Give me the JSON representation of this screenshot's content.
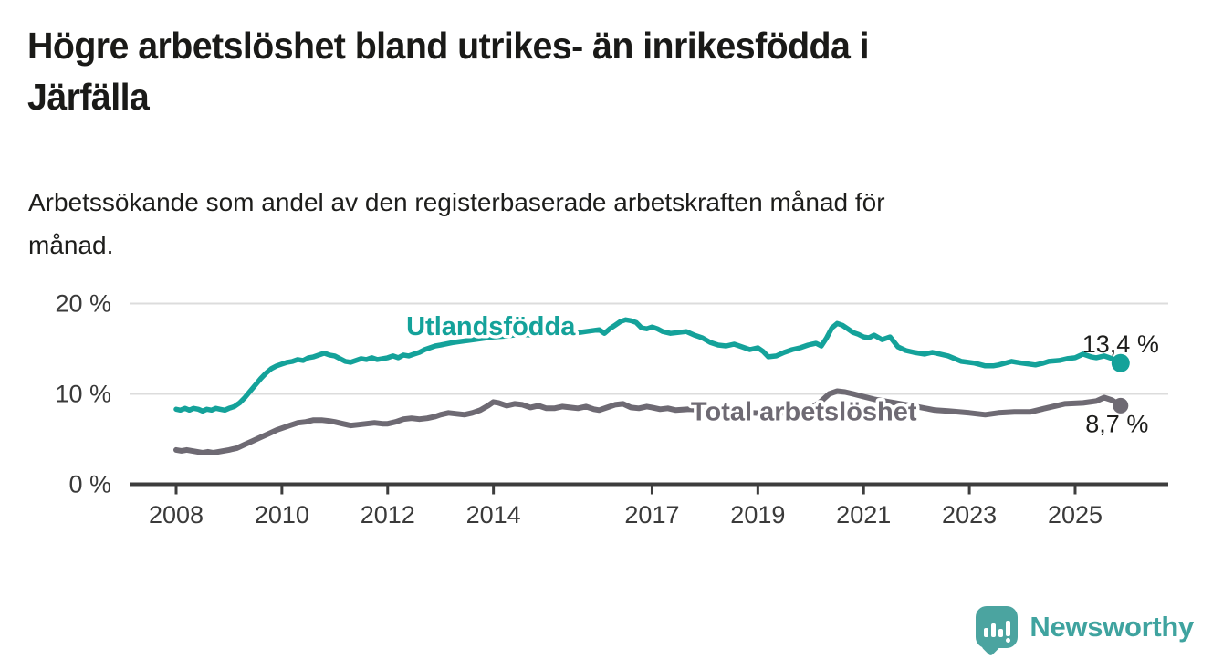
{
  "header": {
    "title": "Högre arbetslöshet bland utrikes- än inrikesfödda i Järfälla",
    "title_lines": [
      "Högre arbetslöshet bland utrikes- än inrikesfödda i",
      "Järfälla"
    ],
    "subtitle": "Arbetssökande som andel av den registerbaserade arbetskraften månad för månad.",
    "subtitle_lines": [
      "Arbetssökande som andel av den registerbaserade arbetskraften månad för",
      "månad."
    ]
  },
  "colors": {
    "accent_teal": "#14a29a",
    "series_gray": "#6e6a73",
    "text_dark": "#1a1a18",
    "axis_text": "#3a3a3a",
    "gridline": "#dcdcdc",
    "axis_line": "#3d3d3d",
    "logo_teal": "#4ba4a0"
  },
  "chart_data": {
    "type": "line",
    "x_unit": "decimal years (monthly data)",
    "xlim": [
      2007.1,
      2026.8
    ],
    "ylim": [
      0,
      22
    ],
    "grid": "horizontal gridlines at 10 and 20",
    "legend_position": "inline labels on lines, end value labels at right",
    "x_ticks": [
      2008,
      2010,
      2012,
      2014,
      2017,
      2019,
      2021,
      2023,
      2025
    ],
    "y_ticks": [
      {
        "value": 0,
        "label": "0 %"
      },
      {
        "value": 10,
        "label": "10 %"
      },
      {
        "value": 20,
        "label": "20 %"
      }
    ],
    "series": [
      {
        "id": "utlandsfodda",
        "name": "Utlandsfödda",
        "color": "#14a29a",
        "end_value": 13.4,
        "end_label": "13,4 %",
        "end_label_offset": [
          0,
          -21
        ],
        "inline_label": {
          "text": "Utlandsfödda",
          "x": 2013.95,
          "y": 17.55
        },
        "points": [
          [
            2008.0,
            8.3
          ],
          [
            2008.08,
            8.2
          ],
          [
            2008.17,
            8.4
          ],
          [
            2008.25,
            8.2
          ],
          [
            2008.33,
            8.4
          ],
          [
            2008.42,
            8.3
          ],
          [
            2008.5,
            8.1
          ],
          [
            2008.58,
            8.3
          ],
          [
            2008.67,
            8.2
          ],
          [
            2008.75,
            8.4
          ],
          [
            2008.83,
            8.3
          ],
          [
            2008.92,
            8.2
          ],
          [
            2009.0,
            8.4
          ],
          [
            2009.1,
            8.6
          ],
          [
            2009.2,
            9.0
          ],
          [
            2009.3,
            9.6
          ],
          [
            2009.4,
            10.3
          ],
          [
            2009.5,
            11.0
          ],
          [
            2009.6,
            11.7
          ],
          [
            2009.7,
            12.3
          ],
          [
            2009.8,
            12.8
          ],
          [
            2009.9,
            13.1
          ],
          [
            2010.0,
            13.3
          ],
          [
            2010.1,
            13.5
          ],
          [
            2010.2,
            13.6
          ],
          [
            2010.3,
            13.8
          ],
          [
            2010.4,
            13.7
          ],
          [
            2010.5,
            14.0
          ],
          [
            2010.6,
            14.1
          ],
          [
            2010.7,
            14.3
          ],
          [
            2010.8,
            14.5
          ],
          [
            2010.9,
            14.3
          ],
          [
            2011.0,
            14.2
          ],
          [
            2011.1,
            13.9
          ],
          [
            2011.2,
            13.6
          ],
          [
            2011.3,
            13.5
          ],
          [
            2011.4,
            13.7
          ],
          [
            2011.5,
            13.9
          ],
          [
            2011.6,
            13.8
          ],
          [
            2011.7,
            14.0
          ],
          [
            2011.8,
            13.8
          ],
          [
            2011.9,
            13.9
          ],
          [
            2012.0,
            14.0
          ],
          [
            2012.1,
            14.2
          ],
          [
            2012.2,
            14.0
          ],
          [
            2012.3,
            14.3
          ],
          [
            2012.4,
            14.2
          ],
          [
            2012.5,
            14.4
          ],
          [
            2012.6,
            14.6
          ],
          [
            2012.7,
            14.9
          ],
          [
            2012.8,
            15.1
          ],
          [
            2012.9,
            15.3
          ],
          [
            2013.0,
            15.4
          ],
          [
            2013.25,
            15.7
          ],
          [
            2013.5,
            15.9
          ],
          [
            2013.75,
            16.1
          ],
          [
            2014.0,
            16.3
          ],
          [
            2014.25,
            16.4
          ],
          [
            2014.5,
            16.6
          ],
          [
            2014.75,
            16.5
          ],
          [
            2015.0,
            16.7
          ],
          [
            2015.25,
            16.8
          ],
          [
            2015.5,
            16.7
          ],
          [
            2015.75,
            16.9
          ],
          [
            2016.0,
            17.1
          ],
          [
            2016.1,
            16.7
          ],
          [
            2016.2,
            17.2
          ],
          [
            2016.3,
            17.6
          ],
          [
            2016.4,
            18.0
          ],
          [
            2016.5,
            18.2
          ],
          [
            2016.6,
            18.1
          ],
          [
            2016.7,
            17.9
          ],
          [
            2016.8,
            17.3
          ],
          [
            2016.9,
            17.2
          ],
          [
            2017.0,
            17.4
          ],
          [
            2017.1,
            17.2
          ],
          [
            2017.2,
            16.9
          ],
          [
            2017.35,
            16.7
          ],
          [
            2017.5,
            16.8
          ],
          [
            2017.65,
            16.9
          ],
          [
            2017.8,
            16.5
          ],
          [
            2017.95,
            16.2
          ],
          [
            2018.1,
            15.7
          ],
          [
            2018.25,
            15.4
          ],
          [
            2018.4,
            15.3
          ],
          [
            2018.55,
            15.5
          ],
          [
            2018.7,
            15.2
          ],
          [
            2018.85,
            14.9
          ],
          [
            2019.0,
            15.1
          ],
          [
            2019.1,
            14.7
          ],
          [
            2019.2,
            14.1
          ],
          [
            2019.35,
            14.2
          ],
          [
            2019.5,
            14.6
          ],
          [
            2019.65,
            14.9
          ],
          [
            2019.8,
            15.1
          ],
          [
            2019.95,
            15.4
          ],
          [
            2020.1,
            15.6
          ],
          [
            2020.2,
            15.3
          ],
          [
            2020.3,
            16.2
          ],
          [
            2020.4,
            17.3
          ],
          [
            2020.5,
            17.8
          ],
          [
            2020.6,
            17.6
          ],
          [
            2020.7,
            17.2
          ],
          [
            2020.8,
            16.8
          ],
          [
            2020.9,
            16.6
          ],
          [
            2021.0,
            16.3
          ],
          [
            2021.1,
            16.2
          ],
          [
            2021.2,
            16.5
          ],
          [
            2021.35,
            16.0
          ],
          [
            2021.5,
            16.3
          ],
          [
            2021.65,
            15.2
          ],
          [
            2021.8,
            14.8
          ],
          [
            2021.95,
            14.6
          ],
          [
            2022.15,
            14.4
          ],
          [
            2022.3,
            14.6
          ],
          [
            2022.45,
            14.4
          ],
          [
            2022.6,
            14.2
          ],
          [
            2022.85,
            13.6
          ],
          [
            2023.1,
            13.4
          ],
          [
            2023.3,
            13.1
          ],
          [
            2023.45,
            13.1
          ],
          [
            2023.55,
            13.2
          ],
          [
            2023.8,
            13.6
          ],
          [
            2023.9,
            13.5
          ],
          [
            2024.0,
            13.4
          ],
          [
            2024.25,
            13.2
          ],
          [
            2024.4,
            13.4
          ],
          [
            2024.5,
            13.6
          ],
          [
            2024.7,
            13.7
          ],
          [
            2024.85,
            13.9
          ],
          [
            2025.0,
            14.0
          ],
          [
            2025.15,
            14.4
          ],
          [
            2025.3,
            14.1
          ],
          [
            2025.4,
            14.0
          ],
          [
            2025.55,
            14.2
          ],
          [
            2025.7,
            13.9
          ],
          [
            2025.86,
            13.4
          ]
        ]
      },
      {
        "id": "total-arbetsloshet",
        "name": "Total arbetslöshet",
        "color": "#6e6a73",
        "end_value": 8.7,
        "end_label": "8,7 %",
        "end_label_offset": [
          -4,
          20
        ],
        "inline_label": {
          "text": "Total arbetslöshet",
          "x": 2019.87,
          "y": 8.1
        },
        "points": [
          [
            2008.0,
            3.8
          ],
          [
            2008.1,
            3.7
          ],
          [
            2008.2,
            3.8
          ],
          [
            2008.3,
            3.7
          ],
          [
            2008.4,
            3.6
          ],
          [
            2008.5,
            3.5
          ],
          [
            2008.6,
            3.6
          ],
          [
            2008.7,
            3.5
          ],
          [
            2008.8,
            3.6
          ],
          [
            2008.9,
            3.7
          ],
          [
            2009.0,
            3.8
          ],
          [
            2009.15,
            4.0
          ],
          [
            2009.3,
            4.4
          ],
          [
            2009.45,
            4.8
          ],
          [
            2009.6,
            5.2
          ],
          [
            2009.75,
            5.6
          ],
          [
            2009.9,
            6.0
          ],
          [
            2010.0,
            6.2
          ],
          [
            2010.15,
            6.5
          ],
          [
            2010.3,
            6.8
          ],
          [
            2010.45,
            6.9
          ],
          [
            2010.6,
            7.1
          ],
          [
            2010.75,
            7.1
          ],
          [
            2010.9,
            7.0
          ],
          [
            2011.0,
            6.9
          ],
          [
            2011.15,
            6.7
          ],
          [
            2011.3,
            6.5
          ],
          [
            2011.45,
            6.6
          ],
          [
            2011.6,
            6.7
          ],
          [
            2011.75,
            6.8
          ],
          [
            2011.9,
            6.7
          ],
          [
            2012.0,
            6.7
          ],
          [
            2012.15,
            6.9
          ],
          [
            2012.3,
            7.2
          ],
          [
            2012.45,
            7.3
          ],
          [
            2012.6,
            7.2
          ],
          [
            2012.75,
            7.3
          ],
          [
            2012.9,
            7.5
          ],
          [
            2013.0,
            7.7
          ],
          [
            2013.15,
            7.9
          ],
          [
            2013.3,
            7.8
          ],
          [
            2013.45,
            7.7
          ],
          [
            2013.6,
            7.9
          ],
          [
            2013.75,
            8.2
          ],
          [
            2013.9,
            8.7
          ],
          [
            2014.0,
            9.1
          ],
          [
            2014.1,
            9.0
          ],
          [
            2014.25,
            8.7
          ],
          [
            2014.4,
            8.9
          ],
          [
            2014.55,
            8.8
          ],
          [
            2014.7,
            8.5
          ],
          [
            2014.85,
            8.7
          ],
          [
            2015.0,
            8.4
          ],
          [
            2015.15,
            8.4
          ],
          [
            2015.3,
            8.6
          ],
          [
            2015.45,
            8.5
          ],
          [
            2015.6,
            8.4
          ],
          [
            2015.75,
            8.6
          ],
          [
            2015.9,
            8.3
          ],
          [
            2016.0,
            8.2
          ],
          [
            2016.15,
            8.5
          ],
          [
            2016.3,
            8.8
          ],
          [
            2016.45,
            8.9
          ],
          [
            2016.6,
            8.5
          ],
          [
            2016.75,
            8.4
          ],
          [
            2016.9,
            8.6
          ],
          [
            2017.0,
            8.5
          ],
          [
            2017.15,
            8.3
          ],
          [
            2017.3,
            8.4
          ],
          [
            2017.45,
            8.2
          ],
          [
            2017.7,
            8.3
          ],
          [
            2018.0,
            8.2
          ],
          [
            2018.3,
            8.0
          ],
          [
            2018.6,
            8.1
          ],
          [
            2018.9,
            7.9
          ],
          [
            2019.2,
            7.8
          ],
          [
            2019.5,
            7.9
          ],
          [
            2019.8,
            8.1
          ],
          [
            2020.0,
            8.4
          ],
          [
            2020.2,
            9.2
          ],
          [
            2020.35,
            10.0
          ],
          [
            2020.5,
            10.3
          ],
          [
            2020.65,
            10.2
          ],
          [
            2020.8,
            10.0
          ],
          [
            2021.0,
            9.7
          ],
          [
            2021.2,
            9.4
          ],
          [
            2021.4,
            9.2
          ],
          [
            2021.6,
            9.0
          ],
          [
            2021.8,
            8.8
          ],
          [
            2022.0,
            8.6
          ],
          [
            2022.35,
            8.2
          ],
          [
            2022.6,
            8.1
          ],
          [
            2023.0,
            7.9
          ],
          [
            2023.3,
            7.7
          ],
          [
            2023.55,
            7.9
          ],
          [
            2023.85,
            8.0
          ],
          [
            2024.15,
            8.0
          ],
          [
            2024.5,
            8.5
          ],
          [
            2024.8,
            8.9
          ],
          [
            2025.15,
            9.0
          ],
          [
            2025.4,
            9.2
          ],
          [
            2025.55,
            9.6
          ],
          [
            2025.7,
            9.3
          ],
          [
            2025.86,
            8.7
          ]
        ]
      }
    ]
  },
  "branding": {
    "logo_text": "Newsworthy",
    "logo_icon": "newsworthy-speech-bubble-bar-chart-icon"
  }
}
